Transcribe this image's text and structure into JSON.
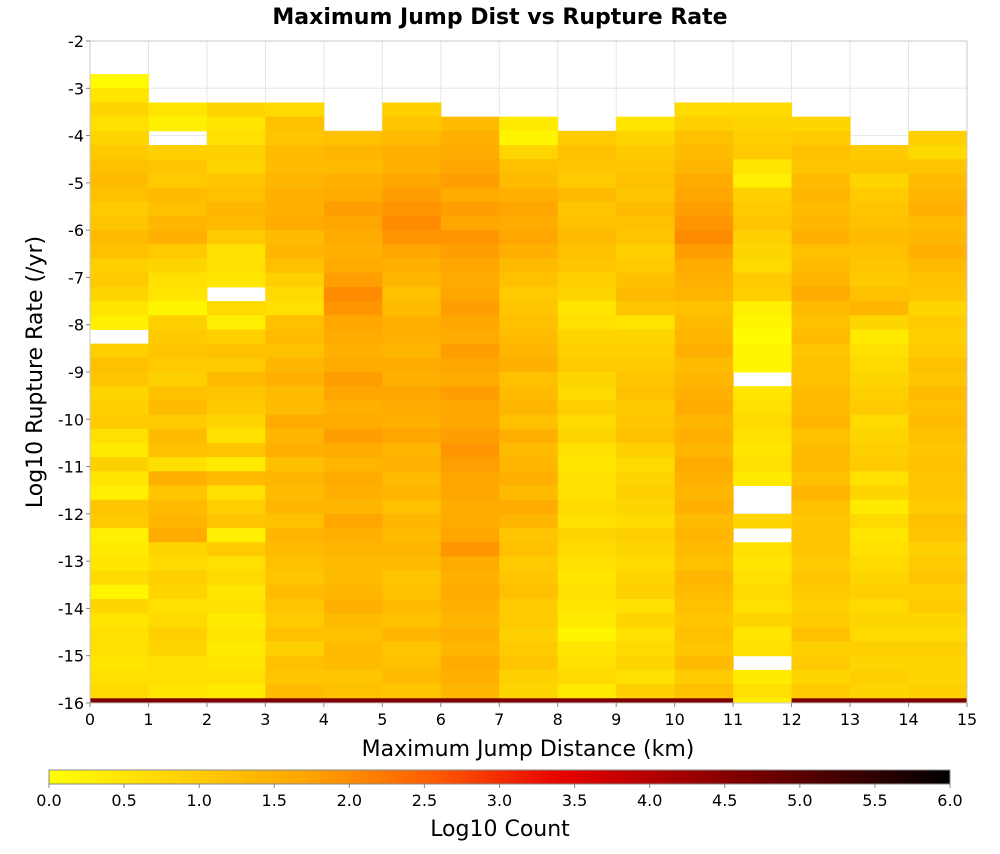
{
  "chart_data": {
    "type": "heatmap",
    "title": "Maximum Jump Dist vs Rupture Rate",
    "xlabel": "Maximum Jump Distance (km)",
    "ylabel": "Log10 Rupture Rate (/yr)",
    "xlim": [
      0,
      15
    ],
    "ylim": [
      -16,
      -2
    ],
    "x_ticks": [
      "0",
      "1",
      "2",
      "3",
      "4",
      "5",
      "6",
      "7",
      "8",
      "9",
      "10",
      "11",
      "12",
      "13",
      "14",
      "15"
    ],
    "y_ticks": [
      "-2",
      "-3",
      "-4",
      "-5",
      "-6",
      "-7",
      "-8",
      "-9",
      "-10",
      "-11",
      "-12",
      "-13",
      "-14",
      "-15",
      "-16"
    ],
    "grid": true,
    "x_bin_width": 1,
    "y_bin_height": 0.3,
    "colorbar": {
      "label": "Log10 Count",
      "range": [
        0.0,
        6.0
      ],
      "ticks": [
        "0.0",
        "0.5",
        "1.0",
        "1.5",
        "2.0",
        "2.5",
        "3.0",
        "3.5",
        "4.0",
        "4.5",
        "5.0",
        "5.5",
        "6.0"
      ],
      "stops": [
        "#ffff00",
        "#ffd200",
        "#ffa500",
        "#ff5a00",
        "#e60000",
        "#9a0000",
        "#4d0000",
        "#000000"
      ]
    },
    "columns": [
      {
        "x_start": 0,
        "y_top": -2.7,
        "values": [
          0.1,
          0.5,
          0.8,
          0.6,
          0.8,
          1.0,
          1.2,
          1.3,
          1.2,
          1.0,
          1.1,
          1.3,
          1.2,
          0.9,
          1.0,
          0.8,
          0.5,
          0.3,
          null,
          0.9,
          1.2,
          1.1,
          0.8,
          0.9,
          1.0,
          0.6,
          0.4,
          0.9,
          0.5,
          0.3,
          1.1,
          1.0,
          0.3,
          0.4,
          0.5,
          0.7,
          0.2,
          0.8,
          0.5,
          0.6,
          0.6,
          0.5,
          0.6,
          0.7,
          0.5,
          0.9,
          null,
          4.6
        ]
      },
      {
        "x_start": 1,
        "y_top": -3.3,
        "values": [
          0.5,
          0.3,
          null,
          0.9,
          1.1,
          1.0,
          1.3,
          1.2,
          1.4,
          1.5,
          1.0,
          0.8,
          0.6,
          0.5,
          0.2,
          0.9,
          1.0,
          1.1,
          1.0,
          0.9,
          1.2,
          1.3,
          1.0,
          1.3,
          1.2,
          0.6,
          1.5,
          1.1,
          1.3,
          1.4,
          1.6,
          0.8,
          0.7,
          0.9,
          0.8,
          0.6,
          0.7,
          0.9,
          0.8,
          0.6,
          0.6,
          0.5,
          1.1,
          0.9,
          0.6,
          0.7,
          0.8,
          4.6
        ]
      },
      {
        "x_start": 2,
        "y_top": -3.3,
        "values": [
          0.8,
          0.5,
          0.6,
          0.9,
          0.8,
          1.1,
          1.2,
          1.4,
          1.3,
          1.0,
          0.6,
          0.6,
          0.5,
          null,
          0.7,
          0.3,
          0.9,
          1.2,
          1.0,
          1.3,
          1.1,
          1.0,
          0.8,
          0.6,
          1.1,
          0.4,
          1.3,
          0.6,
          0.9,
          1.1,
          0.3,
          1.0,
          0.6,
          0.7,
          0.5,
          0.6,
          0.4,
          0.5,
          0.4,
          0.5,
          0.6,
          0.4,
          0.7,
          0.5,
          0.6,
          0.4,
          0.7,
          4.6
        ]
      },
      {
        "x_start": 3,
        "y_top": -3.3,
        "values": [
          0.7,
          1.2,
          1.1,
          1.3,
          1.3,
          1.4,
          1.5,
          1.5,
          1.6,
          1.3,
          1.4,
          1.2,
          0.9,
          0.7,
          0.6,
          1.2,
          1.3,
          1.2,
          1.4,
          1.5,
          1.3,
          1.3,
          1.6,
          1.4,
          1.5,
          1.2,
          1.4,
          1.3,
          1.4,
          1.2,
          1.4,
          1.3,
          1.2,
          1.1,
          1.3,
          1.1,
          1.0,
          1.2,
          0.9,
          1.2,
          1.1,
          1.3,
          1.0,
          0.9,
          1.2,
          0.8,
          0.7,
          4.6
        ]
      },
      {
        "x_start": 4,
        "y_top": -3.9,
        "values": [
          1.2,
          1.4,
          1.3,
          1.5,
          1.6,
          1.8,
          1.7,
          1.6,
          1.5,
          1.6,
          1.8,
          2.0,
          1.9,
          1.7,
          1.6,
          1.5,
          1.6,
          1.8,
          1.7,
          1.5,
          1.6,
          1.8,
          1.6,
          1.4,
          1.6,
          1.5,
          1.4,
          1.7,
          1.5,
          1.4,
          1.3,
          1.3,
          1.4,
          1.5,
          1.3,
          1.2,
          1.3,
          1.3,
          1.1,
          1.2,
          1.0,
          4.6
        ]
      },
      {
        "x_start": 5,
        "y_top": -3.3,
        "values": [
          0.9,
          1.1,
          1.3,
          1.5,
          1.5,
          1.7,
          1.8,
          1.9,
          2.0,
          1.9,
          1.7,
          1.5,
          1.4,
          1.2,
          1.3,
          1.5,
          1.5,
          1.4,
          1.6,
          1.5,
          1.7,
          1.6,
          1.5,
          1.7,
          1.4,
          1.5,
          1.3,
          1.4,
          1.2,
          1.4,
          1.3,
          1.4,
          1.3,
          1.1,
          1.2,
          1.3,
          1.2,
          1.4,
          1.1,
          1.2,
          1.3,
          1.1,
          1.2,
          1.0,
          1.2,
          1.1,
          1.0,
          4.6
        ]
      },
      {
        "x_start": 6,
        "y_top": -3.6,
        "values": [
          1.3,
          1.5,
          1.6,
          1.7,
          1.8,
          1.6,
          1.8,
          1.7,
          1.9,
          1.8,
          1.7,
          1.6,
          1.7,
          1.8,
          1.7,
          1.6,
          1.8,
          1.7,
          1.6,
          1.8,
          1.7,
          1.7,
          1.8,
          1.9,
          1.8,
          1.7,
          1.7,
          1.6,
          1.6,
          1.7,
          1.9,
          1.6,
          1.5,
          1.6,
          1.5,
          1.4,
          1.5,
          1.4,
          1.6,
          1.5,
          1.4,
          1.4,
          1.5,
          1.3,
          4.6
        ]
      },
      {
        "x_start": 7,
        "y_top": -3.6,
        "values": [
          0.4,
          0.2,
          0.8,
          1.2,
          1.3,
          1.5,
          1.7,
          1.6,
          1.7,
          1.5,
          1.3,
          1.2,
          1.0,
          1.1,
          1.2,
          1.3,
          1.4,
          1.5,
          1.2,
          1.3,
          1.4,
          1.2,
          1.5,
          1.3,
          1.4,
          1.5,
          1.3,
          1.6,
          1.4,
          1.1,
          1.2,
          1.0,
          1.1,
          1.2,
          1.0,
          1.0,
          0.9,
          1.0,
          1.1,
          0.9,
          0.8,
          1.0,
          0.8,
          0.9,
          4.6
        ]
      },
      {
        "x_start": 8,
        "y_top": -3.9,
        "values": [
          1.0,
          1.2,
          1.1,
          1.0,
          1.3,
          1.1,
          1.2,
          1.3,
          1.2,
          1.1,
          0.9,
          0.8,
          0.5,
          0.6,
          0.8,
          0.9,
          1.0,
          0.8,
          0.7,
          0.9,
          0.7,
          0.8,
          0.6,
          0.5,
          0.6,
          0.6,
          0.7,
          0.6,
          0.8,
          0.7,
          0.6,
          0.5,
          0.6,
          0.5,
          0.4,
          0.2,
          0.5,
          0.6,
          0.7,
          0.4,
          0.6,
          4.6
        ]
      },
      {
        "x_start": 9,
        "y_top": -3.6,
        "values": [
          0.5,
          0.8,
          1.0,
          1.1,
          1.2,
          1.1,
          1.3,
          1.2,
          1.1,
          0.9,
          1.0,
          1.2,
          1.3,
          1.1,
          0.5,
          0.8,
          0.9,
          1.0,
          1.1,
          1.2,
          1.0,
          1.1,
          1.2,
          0.9,
          0.7,
          0.8,
          0.9,
          0.8,
          0.7,
          0.9,
          0.8,
          0.7,
          0.8,
          0.9,
          0.6,
          0.8,
          0.6,
          0.7,
          0.8,
          0.6,
          0.9,
          0.7,
          0.6,
          0.5,
          4.6
        ]
      },
      {
        "x_start": 10,
        "y_top": -3.3,
        "values": [
          0.7,
          0.9,
          1.2,
          1.3,
          1.4,
          1.6,
          1.7,
          1.8,
          1.9,
          2.0,
          1.8,
          1.6,
          1.5,
          1.4,
          1.2,
          1.3,
          1.4,
          1.5,
          1.3,
          1.4,
          1.5,
          1.6,
          1.4,
          1.5,
          1.4,
          1.6,
          1.5,
          1.4,
          1.5,
          1.3,
          1.4,
          1.3,
          1.2,
          1.4,
          1.3,
          1.2,
          1.1,
          1.2,
          1.1,
          1.3,
          1.0,
          1.2,
          0.9,
          1.0,
          0.8,
          1.1,
          0.9,
          4.6
        ]
      },
      {
        "x_start": 11,
        "y_top": -3.3,
        "values": [
          0.7,
          0.8,
          0.9,
          1.0,
          0.5,
          0.3,
          0.9,
          1.0,
          1.1,
          0.9,
          0.8,
          0.7,
          1.0,
          0.9,
          0.3,
          0.2,
          0.1,
          0.2,
          0.2,
          null,
          0.5,
          0.6,
          0.7,
          0.6,
          0.5,
          0.6,
          0.4,
          null,
          null,
          0.8,
          null,
          0.6,
          0.5,
          0.6,
          0.7,
          0.6,
          0.8,
          0.5,
          0.6,
          null,
          0.4,
          0.6,
          0.3,
          0.4,
          null,
          0.5,
          0.4,
          0.7,
          0.2,
          0.4,
          null,
          null,
          null
        ]
      },
      {
        "x_start": 12,
        "y_top": -3.6,
        "values": [
          0.8,
          1.0,
          1.2,
          1.1,
          1.3,
          1.4,
          1.3,
          1.4,
          1.5,
          1.2,
          1.3,
          1.4,
          1.6,
          1.3,
          1.2,
          1.3,
          1.1,
          1.2,
          1.2,
          1.3,
          1.3,
          1.4,
          1.2,
          1.3,
          1.3,
          1.2,
          1.4,
          1.2,
          1.1,
          1.1,
          1.1,
          1.0,
          1.1,
          1.0,
          0.9,
          1.0,
          1.2,
          0.9,
          1.0,
          0.8,
          1.0,
          0.9,
          0.9,
          4.6
        ]
      },
      {
        "x_start": 13,
        "y_top": -4.2,
        "values": [
          1.0,
          1.1,
          0.8,
          1.0,
          1.1,
          1.2,
          1.3,
          1.2,
          1.1,
          1.0,
          1.2,
          1.4,
          0.8,
          0.4,
          0.6,
          0.7,
          0.8,
          0.9,
          1.0,
          0.7,
          0.8,
          0.9,
          1.0,
          0.6,
          0.8,
          0.4,
          0.7,
          0.5,
          0.6,
          0.7,
          0.8,
          0.9,
          0.7,
          0.8,
          0.7,
          0.9,
          0.8,
          0.9,
          0.8,
          0.7,
          0.6,
          0.7,
          0.6,
          0.7,
          0.5,
          0.8,
          0.6,
          0.7,
          0.7,
          null,
          0.4,
          0.3,
          0.2,
          0.5,
          4.6
        ]
      },
      {
        "x_start": 14,
        "y_top": -3.9,
        "values": [
          0.9,
          0.7,
          1.1,
          1.3,
          1.4,
          1.5,
          1.3,
          1.4,
          1.5,
          1.3,
          1.2,
          1.1,
          0.8,
          1.0,
          0.9,
          1.0,
          1.2,
          1.1,
          1.3,
          1.2,
          1.3,
          1.2,
          1.1,
          1.2,
          1.1,
          1.1,
          1.0,
          1.2,
          1.1,
          0.9,
          1.0,
          1.1,
          0.9,
          1.0,
          0.8,
          0.7,
          0.9,
          0.8,
          0.8,
          0.9,
          0.7,
          0.6,
          0.7,
          4.6
        ]
      }
    ],
    "bottom_row": {
      "y_range": [
        -16,
        -15.9
      ],
      "x_range": [
        0,
        15
      ],
      "value": 4.6,
      "gap_x_range": [
        11,
        12
      ]
    }
  }
}
